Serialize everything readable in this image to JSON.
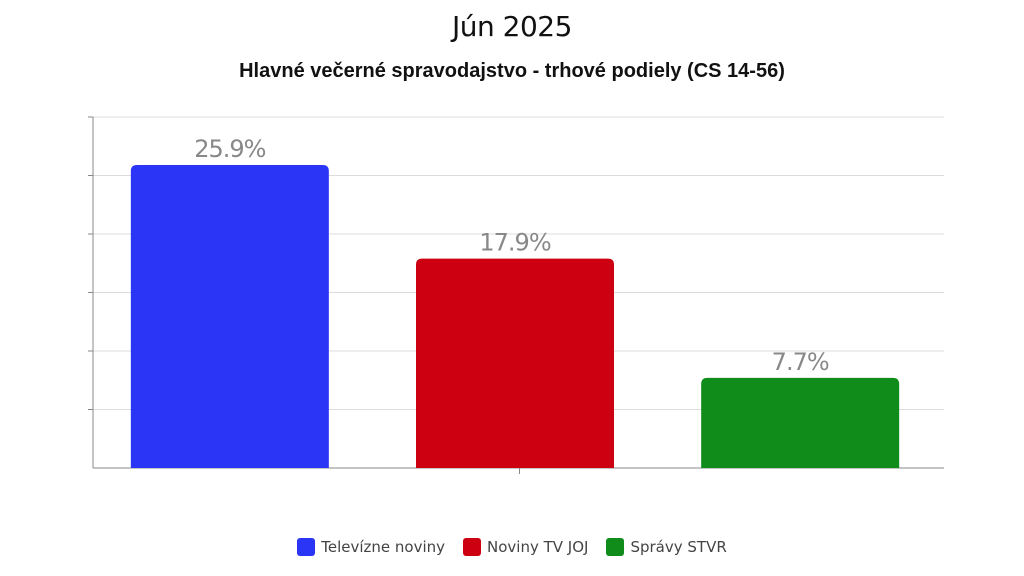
{
  "chart_data": {
    "type": "bar",
    "title": "Jún 2025",
    "subtitle": "Hlavné večerné spravodajstvo - trhové podiely (CS 14-56)",
    "categories": [
      "Televízne noviny",
      "Noviny TV JOJ",
      "Správy STVR"
    ],
    "values": [
      25.9,
      17.9,
      7.7
    ],
    "value_labels": [
      "25.9%",
      "17.9%",
      "7.7%"
    ],
    "colors": [
      "#2b35f5",
      "#cc0011",
      "#0f8c1a"
    ],
    "ylim": [
      0,
      30
    ],
    "grid": true,
    "legend_position": "bottom",
    "legend": [
      "Televízne noviny",
      "Noviny TV JOJ",
      "Správy STVR"
    ]
  }
}
